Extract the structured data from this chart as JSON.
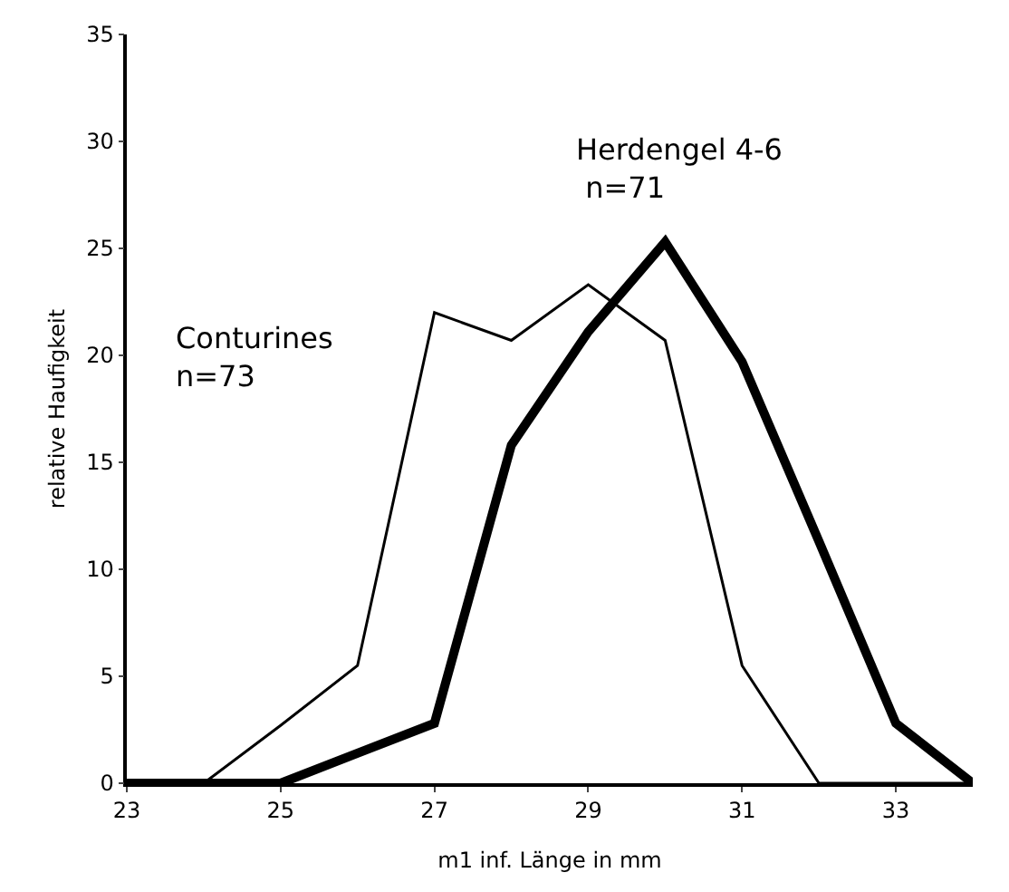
{
  "chart_data": {
    "type": "line",
    "xlabel": "m1 inf. Länge in mm",
    "ylabel": "relative Haufigkeit",
    "x": [
      23,
      24,
      25,
      26,
      27,
      28,
      29,
      30,
      31,
      32,
      33,
      34
    ],
    "series": [
      {
        "name": "Conturines\nn=73",
        "color": "#000000",
        "values": [
          0,
          0,
          2.7,
          5.5,
          22,
          20.7,
          23.3,
          20.7,
          5.5,
          0,
          0,
          0
        ]
      },
      {
        "name": "Herdengel 4-6\n n=71",
        "color": "#000000",
        "values": [
          0,
          0,
          0,
          1.4,
          2.8,
          15.8,
          21.1,
          25.3,
          19.7,
          11.3,
          2.8,
          0
        ]
      }
    ],
    "xlim": [
      23,
      34
    ],
    "xticks": [
      23,
      25,
      27,
      29,
      31,
      33
    ],
    "ylim": [
      0,
      35
    ],
    "yticks": [
      0,
      5,
      10,
      15,
      20,
      25,
      30,
      35
    ],
    "grid": false,
    "legend": false,
    "marker": "none",
    "line_style": "solid"
  }
}
